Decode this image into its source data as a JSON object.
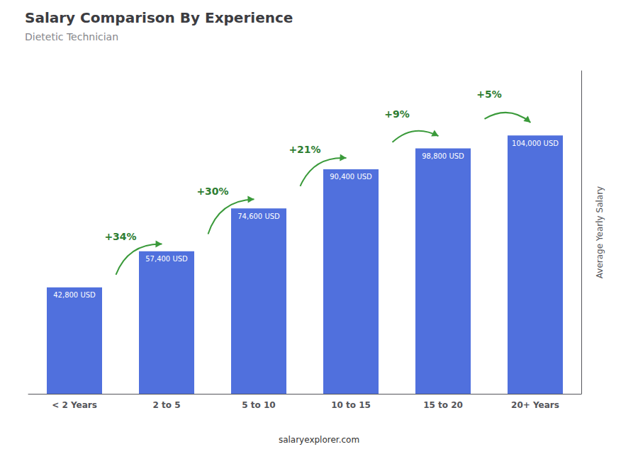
{
  "chart_data": {
    "type": "bar",
    "title": "Salary Comparison By Experience",
    "subtitle": "Dietetic Technician",
    "categories": [
      "< 2 Years",
      "2 to 5",
      "5 to 10",
      "10 to 15",
      "15 to 20",
      "20+ Years"
    ],
    "values": [
      42800,
      57400,
      74600,
      90400,
      98800,
      104000
    ],
    "value_labels": [
      "42,800 USD",
      "57,400 USD",
      "74,600 USD",
      "90,400 USD",
      "98,800 USD",
      "104,000 USD"
    ],
    "data_labels": true,
    "ylabel": "Average Yearly Salary",
    "ylim": [
      0,
      130000
    ],
    "grid": false,
    "tick_labels": "x",
    "annotations": [
      "+34%",
      "+30%",
      "+21%",
      "+9%",
      "+5%"
    ],
    "footer": "salaryexplorer.com"
  }
}
